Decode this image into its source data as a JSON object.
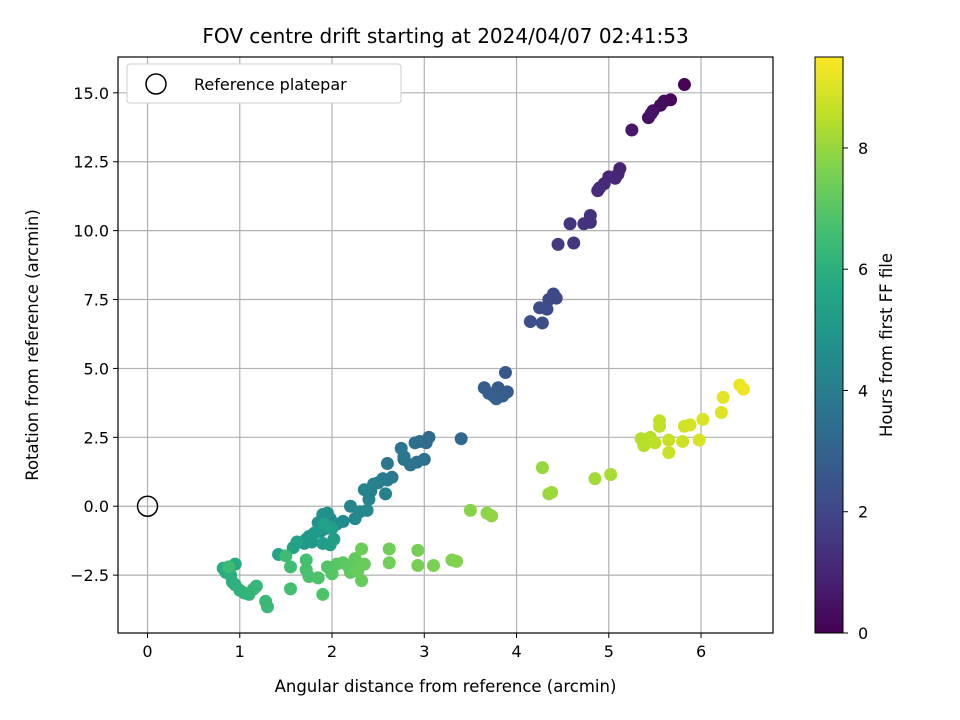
{
  "chart_data": {
    "type": "scatter",
    "title": "FOV centre drift starting at 2024/04/07 02:41:53",
    "xlabel": "Angular distance from reference (arcmin)",
    "ylabel": "Rotation from reference (arcmin)",
    "xlim": [
      -0.32,
      6.78
    ],
    "ylim": [
      -4.6,
      16.3
    ],
    "xticks": [
      0,
      1,
      2,
      3,
      4,
      5,
      6
    ],
    "yticks": [
      -2.5,
      0.0,
      2.5,
      5.0,
      7.5,
      10.0,
      12.5,
      15.0
    ],
    "ytick_labels": [
      "−2.5",
      "0.0",
      "2.5",
      "5.0",
      "7.5",
      "10.0",
      "12.5",
      "15.0"
    ],
    "grid": true,
    "legend": {
      "placement": "upper-left",
      "entries": [
        "Reference platepar"
      ]
    },
    "reference_point": {
      "x": 0,
      "y": 0
    },
    "colorbar": {
      "label": "Hours from first FF file",
      "colormap": "viridis",
      "range": [
        0,
        9.5
      ],
      "ticks": [
        0,
        2,
        4,
        6,
        8
      ]
    },
    "series": [
      {
        "points": [
          [
            5.82,
            15.3,
            0.1
          ],
          [
            5.67,
            14.75,
            0.2
          ],
          [
            5.56,
            14.55,
            0.3
          ],
          [
            5.6,
            14.7,
            0.3
          ],
          [
            5.48,
            14.35,
            0.4
          ],
          [
            5.43,
            14.1,
            0.4
          ],
          [
            5.46,
            14.25,
            0.5
          ],
          [
            5.25,
            13.65,
            0.6
          ],
          [
            5.12,
            12.25,
            0.9
          ],
          [
            5.1,
            12.05,
            0.95
          ],
          [
            5.07,
            11.9,
            1.0
          ],
          [
            5.0,
            11.95,
            1.05
          ],
          [
            4.95,
            11.7,
            1.1
          ],
          [
            4.9,
            11.55,
            1.15
          ],
          [
            4.88,
            11.45,
            1.2
          ],
          [
            4.8,
            10.55,
            1.3
          ],
          [
            4.8,
            10.3,
            1.35
          ],
          [
            4.73,
            10.25,
            1.4
          ],
          [
            4.58,
            10.25,
            1.45
          ],
          [
            4.62,
            9.55,
            1.5
          ],
          [
            4.45,
            9.5,
            1.6
          ],
          [
            4.43,
            7.55,
            2.0
          ],
          [
            4.4,
            7.7,
            2.05
          ],
          [
            4.35,
            7.5,
            2.1
          ],
          [
            4.33,
            7.15,
            2.15
          ],
          [
            4.25,
            7.2,
            2.2
          ],
          [
            4.28,
            6.65,
            2.25
          ],
          [
            4.15,
            6.7,
            2.3
          ],
          [
            3.88,
            4.85,
            2.6
          ],
          [
            3.9,
            4.15,
            2.65
          ],
          [
            3.8,
            4.3,
            2.7
          ],
          [
            3.65,
            4.3,
            2.75
          ],
          [
            3.7,
            4.1,
            2.8
          ],
          [
            3.75,
            4.0,
            2.85
          ],
          [
            3.85,
            4.0,
            2.9
          ],
          [
            3.78,
            3.9,
            2.95
          ],
          [
            3.4,
            2.45,
            3.2
          ],
          [
            3.05,
            2.5,
            3.3
          ],
          [
            3.02,
            2.3,
            3.35
          ],
          [
            2.95,
            2.35,
            3.4
          ],
          [
            2.9,
            2.3,
            3.45
          ],
          [
            3.0,
            1.7,
            3.5
          ],
          [
            2.92,
            1.6,
            3.55
          ],
          [
            2.85,
            1.5,
            3.6
          ],
          [
            2.78,
            1.7,
            3.65
          ],
          [
            2.75,
            2.1,
            3.7
          ],
          [
            2.78,
            1.8,
            3.75
          ],
          [
            2.6,
            1.55,
            3.8
          ],
          [
            2.65,
            1.05,
            3.85
          ],
          [
            2.6,
            0.95,
            3.9
          ],
          [
            2.55,
            1.0,
            3.95
          ],
          [
            2.5,
            0.85,
            4.0
          ],
          [
            2.45,
            0.8,
            4.05
          ],
          [
            2.42,
            0.55,
            4.1
          ],
          [
            2.58,
            0.45,
            4.15
          ],
          [
            2.4,
            0.25,
            4.2
          ],
          [
            2.35,
            0.6,
            4.25
          ],
          [
            2.2,
            0.0,
            4.3
          ],
          [
            2.3,
            -0.2,
            4.35
          ],
          [
            2.25,
            -0.45,
            4.4
          ],
          [
            2.38,
            -0.15,
            4.45
          ],
          [
            2.12,
            -0.55,
            4.5
          ],
          [
            2.05,
            -0.65,
            4.55
          ],
          [
            1.95,
            -0.8,
            4.6
          ],
          [
            1.98,
            -0.45,
            4.65
          ],
          [
            1.95,
            -0.25,
            4.7
          ],
          [
            1.9,
            -0.3,
            4.75
          ],
          [
            1.85,
            -0.6,
            4.8
          ],
          [
            1.88,
            -0.9,
            4.85
          ],
          [
            1.8,
            -1.0,
            4.9
          ],
          [
            1.75,
            -1.1,
            4.95
          ],
          [
            1.72,
            -1.2,
            5.0
          ],
          [
            1.7,
            -1.35,
            5.05
          ],
          [
            1.78,
            -1.3,
            5.1
          ],
          [
            1.82,
            -0.95,
            5.15
          ],
          [
            1.9,
            -1.35,
            5.2
          ],
          [
            1.98,
            -1.4,
            5.25
          ],
          [
            2.02,
            -1.2,
            5.3
          ],
          [
            2.0,
            -0.8,
            5.35
          ],
          [
            1.92,
            -0.65,
            5.4
          ],
          [
            1.62,
            -1.3,
            5.45
          ],
          [
            1.58,
            -1.5,
            5.5
          ],
          [
            1.42,
            -1.75,
            5.55
          ],
          [
            0.95,
            -2.1,
            5.8
          ],
          [
            0.82,
            -2.25,
            5.85
          ],
          [
            0.85,
            -2.4,
            5.9
          ],
          [
            0.9,
            -2.5,
            5.95
          ],
          [
            0.92,
            -2.75,
            6.0
          ],
          [
            0.95,
            -2.85,
            6.05
          ],
          [
            1.0,
            -3.05,
            6.1
          ],
          [
            1.05,
            -3.15,
            6.15
          ],
          [
            1.1,
            -3.2,
            6.2
          ],
          [
            1.15,
            -3.0,
            6.25
          ],
          [
            1.18,
            -2.9,
            6.3
          ],
          [
            1.28,
            -3.45,
            6.35
          ],
          [
            1.3,
            -3.65,
            6.4
          ],
          [
            0.88,
            -2.2,
            6.45
          ],
          [
            1.5,
            -1.8,
            6.5
          ],
          [
            1.55,
            -2.2,
            6.55
          ],
          [
            1.55,
            -3.0,
            6.6
          ],
          [
            1.72,
            -1.95,
            6.65
          ],
          [
            1.72,
            -2.3,
            6.7
          ],
          [
            1.75,
            -2.55,
            6.75
          ],
          [
            1.85,
            -2.6,
            6.8
          ],
          [
            1.9,
            -3.2,
            6.85
          ],
          [
            1.95,
            -2.2,
            6.9
          ],
          [
            2.0,
            -2.45,
            6.95
          ],
          [
            2.05,
            -2.1,
            7.0
          ],
          [
            2.12,
            -2.05,
            7.05
          ],
          [
            2.18,
            -2.2,
            7.1
          ],
          [
            2.2,
            -2.4,
            7.15
          ],
          [
            2.25,
            -1.9,
            7.2
          ],
          [
            2.28,
            -2.35,
            7.25
          ],
          [
            2.32,
            -2.7,
            7.3
          ],
          [
            2.35,
            -2.1,
            7.3
          ],
          [
            2.32,
            -1.55,
            7.35
          ],
          [
            2.62,
            -1.55,
            7.4
          ],
          [
            2.62,
            -2.05,
            7.45
          ],
          [
            2.93,
            -1.6,
            7.5
          ],
          [
            2.93,
            -2.15,
            7.55
          ],
          [
            3.1,
            -2.15,
            7.6
          ],
          [
            3.3,
            -1.95,
            7.65
          ],
          [
            3.35,
            -2.0,
            7.7
          ],
          [
            3.5,
            -0.15,
            7.8
          ],
          [
            3.68,
            -0.25,
            7.85
          ],
          [
            3.73,
            -0.35,
            7.9
          ],
          [
            4.28,
            1.4,
            8.0
          ],
          [
            4.35,
            0.45,
            8.05
          ],
          [
            4.38,
            0.5,
            8.1
          ],
          [
            4.85,
            1.0,
            8.2
          ],
          [
            5.02,
            1.15,
            8.25
          ],
          [
            5.35,
            2.45,
            8.4
          ],
          [
            5.38,
            2.2,
            8.45
          ],
          [
            5.45,
            2.5,
            8.5
          ],
          [
            5.5,
            2.3,
            8.55
          ],
          [
            5.55,
            2.9,
            8.6
          ],
          [
            5.55,
            3.1,
            8.65
          ],
          [
            5.65,
            2.4,
            8.7
          ],
          [
            5.65,
            1.95,
            8.75
          ],
          [
            5.8,
            2.35,
            8.8
          ],
          [
            5.82,
            2.9,
            8.85
          ],
          [
            5.88,
            2.95,
            8.9
          ],
          [
            5.98,
            2.4,
            8.95
          ],
          [
            6.02,
            3.15,
            9.0
          ],
          [
            6.22,
            3.4,
            9.05
          ],
          [
            6.24,
            3.95,
            9.1
          ],
          [
            6.42,
            4.4,
            9.2
          ],
          [
            6.46,
            4.25,
            9.3
          ]
        ]
      }
    ]
  }
}
